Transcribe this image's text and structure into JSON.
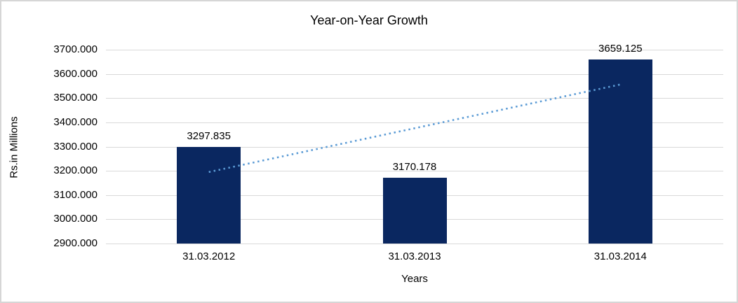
{
  "chart_data": {
    "type": "bar",
    "title": "Year-on-Year Growth",
    "xlabel": "Years",
    "ylabel": "Rs.in Millions",
    "categories": [
      "31.03.2012",
      "31.03.2013",
      "31.03.2014"
    ],
    "values": [
      3297.835,
      3170.178,
      3659.125
    ],
    "data_labels": [
      "3297.835",
      "3170.178",
      "3659.125"
    ],
    "ylim": [
      2900,
      3700
    ],
    "ytick_step": 100,
    "ytick_labels": [
      "3700.000",
      "3600.000",
      "3500.000",
      "3400.000",
      "3300.000",
      "3200.000",
      "3100.000",
      "3000.000",
      "2900.000"
    ],
    "grid": true,
    "legend": "none",
    "bar_color": "#0a2760",
    "gridline_color": "#d9d9d9",
    "trendline": {
      "type": "linear",
      "style": "dotted",
      "color": "#5b9bd5",
      "start_value": 3195.1,
      "end_value": 3556.4
    }
  }
}
